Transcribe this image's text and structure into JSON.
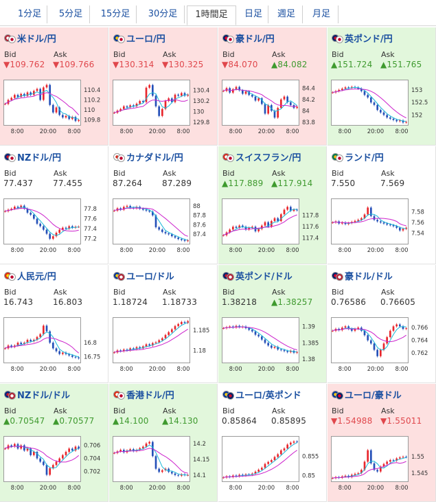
{
  "tabs": [
    {
      "id": "1m",
      "label": "1分足"
    },
    {
      "id": "5m",
      "label": "5分足"
    },
    {
      "id": "15m",
      "label": "15分足"
    },
    {
      "id": "30m",
      "label": "30分足"
    },
    {
      "id": "1h",
      "label": "1時間足"
    },
    {
      "id": "day",
      "label": "日足"
    },
    {
      "id": "week",
      "label": "週足"
    },
    {
      "id": "month",
      "label": "月足"
    }
  ],
  "active_tab": "1h",
  "bid_label": "Bid",
  "ask_label": "Ask",
  "colors": {
    "up": "#e8262c",
    "down": "#2550b8",
    "ma_fast": "#1ab8d8",
    "ma_slow": "#cc22cc",
    "bg_red": "#fde0e0",
    "bg_green": "#e2f7dc",
    "text_up": "#3f9a2f",
    "text_down": "#e0474c"
  },
  "pairs": [
    {
      "id": "usdjpy",
      "name": "米ドル/円",
      "flags": [
        "us",
        "jp"
      ],
      "bg": "red",
      "bid": {
        "text": "▼109.762",
        "dir": "down"
      },
      "ask": {
        "text": "▼109.766",
        "dir": "down"
      },
      "chart_data": {
        "type": "line",
        "y_ticks": [
          "110.4",
          "110.2",
          "110",
          "109.8"
        ],
        "ylim": [
          109.7,
          110.55
        ],
        "x_ticks": [
          "8:00",
          "20:00",
          "8:00"
        ],
        "series": [
          {
            "values": [
              110.12,
              110.2,
              110.24,
              110.3,
              110.26,
              110.32,
              110.28,
              110.35,
              110.3,
              110.38,
              110.42,
              110.2,
              110.45,
              110.5,
              110.1,
              109.95,
              110.05,
              109.9,
              109.85,
              109.88,
              109.82,
              109.86,
              109.78,
              109.8
            ]
          }
        ]
      }
    },
    {
      "id": "eurjpy",
      "name": "ユーロ/円",
      "flags": [
        "eu",
        "jp"
      ],
      "bg": "red",
      "bid": {
        "text": "▼130.314",
        "dir": "down"
      },
      "ask": {
        "text": "▼130.325",
        "dir": "down"
      },
      "chart_data": {
        "type": "line",
        "y_ticks": [
          "130.4",
          "130.2",
          "130",
          "129.8"
        ],
        "ylim": [
          129.75,
          130.55
        ],
        "x_ticks": [
          "8:00",
          "20:00",
          "8:00"
        ],
        "series": [
          {
            "values": [
              129.98,
              130.02,
              130.05,
              130.1,
              130.08,
              130.12,
              130.1,
              130.15,
              130.2,
              130.18,
              130.45,
              130.5,
              130.3,
              130.1,
              129.92,
              130.05,
              130.2,
              130.25,
              130.18,
              130.32,
              130.3,
              130.35,
              130.3,
              130.32
            ]
          }
        ]
      }
    },
    {
      "id": "audjpy",
      "name": "豪ドル/円",
      "flags": [
        "au",
        "jp"
      ],
      "bg": "red",
      "bid": {
        "text": "▼84.070",
        "dir": "down"
      },
      "ask": {
        "text": "▲84.082",
        "dir": "up"
      },
      "chart_data": {
        "type": "line",
        "y_ticks": [
          "84.4",
          "84.2",
          "84",
          "83.8"
        ],
        "ylim": [
          83.75,
          84.5
        ],
        "x_ticks": [
          "8:00",
          "20:00",
          "8:00"
        ],
        "series": [
          {
            "values": [
              84.35,
              84.4,
              84.32,
              84.38,
              84.42,
              84.36,
              84.3,
              84.34,
              84.28,
              84.25,
              84.18,
              84.22,
              84.12,
              83.95,
              84.1,
              84.0,
              83.88,
              84.05,
              84.2,
              84.25,
              84.15,
              84.1,
              84.05,
              84.07
            ]
          }
        ]
      }
    },
    {
      "id": "gbpjpy",
      "name": "英ポンド/円",
      "flags": [
        "gb",
        "jp"
      ],
      "bg": "green",
      "bid": {
        "text": "▲151.724",
        "dir": "up"
      },
      "ask": {
        "text": "▲151.765",
        "dir": "up"
      },
      "chart_data": {
        "type": "line",
        "y_ticks": [
          "153",
          "152.5",
          "152"
        ],
        "ylim": [
          151.6,
          153.3
        ],
        "x_ticks": [
          "8:00",
          "20:00",
          "8:00"
        ],
        "series": [
          {
            "values": [
              152.9,
              152.95,
              153.0,
              153.05,
              153.1,
              153.08,
              153.12,
              153.1,
              153.05,
              152.95,
              152.8,
              152.7,
              152.5,
              152.4,
              152.2,
              152.1,
              152.0,
              151.9,
              151.85,
              151.8,
              151.75,
              151.78,
              151.7,
              151.72
            ]
          }
        ]
      }
    },
    {
      "id": "nzdjpy",
      "name": "NZドル/円",
      "flags": [
        "nz",
        "jp"
      ],
      "bg": "white",
      "bid": {
        "text": "77.437",
        "dir": "flat"
      },
      "ask": {
        "text": "77.455",
        "dir": "flat"
      },
      "chart_data": {
        "type": "line",
        "y_ticks": [
          "77.8",
          "77.6",
          "77.4",
          "77.2"
        ],
        "ylim": [
          77.1,
          77.95
        ],
        "x_ticks": [
          "8:00",
          "20:00",
          "8:00"
        ],
        "series": [
          {
            "values": [
              77.75,
              77.78,
              77.8,
              77.84,
              77.82,
              77.86,
              77.8,
              77.72,
              77.68,
              77.6,
              77.5,
              77.45,
              77.38,
              77.3,
              77.2,
              77.25,
              77.32,
              77.38,
              77.42,
              77.4,
              77.45,
              77.42,
              77.44,
              77.44
            ]
          }
        ]
      }
    },
    {
      "id": "cadjpy",
      "name": "カナダドル/円",
      "flags": [
        "ca",
        "jp"
      ],
      "bg": "white",
      "bid": {
        "text": "87.264",
        "dir": "flat"
      },
      "ask": {
        "text": "87.289",
        "dir": "flat"
      },
      "chart_data": {
        "type": "line",
        "y_ticks": [
          "88",
          "87.8",
          "87.6",
          "87.4"
        ],
        "ylim": [
          87.2,
          88.1
        ],
        "x_ticks": [
          "8:00",
          "20:00",
          "8:00"
        ],
        "series": [
          {
            "values": [
              87.9,
              87.95,
              87.92,
              87.98,
              88.0,
              87.96,
              87.95,
              87.98,
              87.94,
              87.92,
              87.9,
              87.88,
              87.8,
              87.55,
              87.5,
              87.45,
              87.42,
              87.4,
              87.36,
              87.33,
              87.3,
              87.28,
              87.26,
              87.27
            ]
          }
        ]
      }
    },
    {
      "id": "chfjpy",
      "name": "スイスフラン/円",
      "flags": [
        "ch",
        "jp"
      ],
      "bg": "green",
      "bid": {
        "text": "▲117.889",
        "dir": "up"
      },
      "ask": {
        "text": "▲117.914",
        "dir": "up"
      },
      "chart_data": {
        "type": "line",
        "y_ticks": [
          "117.8",
          "117.6",
          "117.4"
        ],
        "ylim": [
          117.3,
          118.05
        ],
        "x_ticks": [
          "8:00",
          "20:00",
          "8:00"
        ],
        "series": [
          {
            "values": [
              117.45,
              117.5,
              117.55,
              117.6,
              117.58,
              117.62,
              117.6,
              117.55,
              117.58,
              117.6,
              117.52,
              117.56,
              117.62,
              117.68,
              117.6,
              117.7,
              117.75,
              117.7,
              117.82,
              117.9,
              117.95,
              117.88,
              117.9,
              117.89
            ]
          }
        ]
      }
    },
    {
      "id": "zarjpy",
      "name": "ランド/円",
      "flags": [
        "za",
        "jp"
      ],
      "bg": "white",
      "bid": {
        "text": "7.550",
        "dir": "flat"
      },
      "ask": {
        "text": "7.569",
        "dir": "flat"
      },
      "chart_data": {
        "type": "line",
        "y_ticks": [
          "7.58",
          "7.56",
          "7.54"
        ],
        "ylim": [
          7.52,
          7.6
        ],
        "x_ticks": [
          "8:00",
          "20:00",
          "8:00"
        ],
        "series": [
          {
            "values": [
              7.56,
              7.562,
              7.558,
              7.56,
              7.557,
              7.559,
              7.561,
              7.563,
              7.565,
              7.568,
              7.575,
              7.588,
              7.572,
              7.565,
              7.562,
              7.56,
              7.558,
              7.556,
              7.555,
              7.553,
              7.55,
              7.545,
              7.548,
              7.55
            ]
          }
        ]
      }
    },
    {
      "id": "cnyjpy",
      "name": "人民元/円",
      "flags": [
        "cn",
        "jp"
      ],
      "bg": "white",
      "bid": {
        "text": "16.743",
        "dir": "flat"
      },
      "ask": {
        "text": "16.803",
        "dir": "flat"
      },
      "chart_data": {
        "type": "line",
        "y_ticks": [
          "16.8",
          "16.75"
        ],
        "ylim": [
          16.73,
          16.88
        ],
        "x_ticks": [
          "8:00",
          "20:00",
          "8:00"
        ],
        "series": [
          {
            "values": [
              16.78,
              16.79,
              16.785,
              16.79,
              16.8,
              16.795,
              16.8,
              16.81,
              16.805,
              16.81,
              16.82,
              16.83,
              16.86,
              16.84,
              16.8,
              16.78,
              16.77,
              16.76,
              16.765,
              16.76,
              16.755,
              16.75,
              16.748,
              16.745
            ]
          }
        ]
      }
    },
    {
      "id": "eurusd",
      "name": "ユーロ/ドル",
      "flags": [
        "eu",
        "us"
      ],
      "bg": "white",
      "bid": {
        "text": "1.18724",
        "dir": "flat"
      },
      "ask": {
        "text": "1.18733",
        "dir": "flat"
      },
      "chart_data": {
        "type": "line",
        "y_ticks": [
          "1.185",
          "1.18"
        ],
        "ylim": [
          1.177,
          1.1875
        ],
        "x_ticks": [
          "8:00",
          "20:00",
          "8:00"
        ],
        "series": [
          {
            "values": [
              1.1795,
              1.18,
              1.1798,
              1.1802,
              1.18,
              1.1805,
              1.1803,
              1.1808,
              1.1805,
              1.181,
              1.1815,
              1.1812,
              1.1818,
              1.182,
              1.1825,
              1.183,
              1.1838,
              1.1845,
              1.1852,
              1.186,
              1.1865,
              1.187,
              1.1868,
              1.1872
            ]
          }
        ]
      }
    },
    {
      "id": "gbpusd",
      "name": "英ポンド/ドル",
      "flags": [
        "gb",
        "us"
      ],
      "bg": "green",
      "bid": {
        "text": "1.38218",
        "dir": "flat"
      },
      "ask": {
        "text": "▲1.38257",
        "dir": "up"
      },
      "chart_data": {
        "type": "line",
        "y_ticks": [
          "1.39",
          "1.385",
          "1.38"
        ],
        "ylim": [
          1.379,
          1.392
        ],
        "x_ticks": [
          "8:00",
          "20:00",
          "8:00"
        ],
        "series": [
          {
            "values": [
              1.3895,
              1.3898,
              1.39,
              1.3897,
              1.3902,
              1.3898,
              1.39,
              1.3895,
              1.389,
              1.3885,
              1.3875,
              1.387,
              1.386,
              1.385,
              1.3842,
              1.3835,
              1.3838,
              1.383,
              1.3828,
              1.3825,
              1.3822,
              1.3826,
              1.382,
              1.3822
            ]
          }
        ]
      }
    },
    {
      "id": "audusd",
      "name": "豪ドル/ドル",
      "flags": [
        "au",
        "us"
      ],
      "bg": "white",
      "bid": {
        "text": "0.76586",
        "dir": "flat"
      },
      "ask": {
        "text": "0.76605",
        "dir": "flat"
      },
      "chart_data": {
        "type": "line",
        "y_ticks": [
          "0.766",
          "0.764",
          "0.762"
        ],
        "ylim": [
          0.7605,
          0.7672
        ],
        "x_ticks": [
          "8:00",
          "20:00",
          "8:00"
        ],
        "series": [
          {
            "values": [
              0.7655,
              0.7658,
              0.7656,
              0.766,
              0.7662,
              0.7658,
              0.7655,
              0.7658,
              0.766,
              0.7655,
              0.7648,
              0.764,
              0.7635,
              0.7625,
              0.7615,
              0.7625,
              0.7635,
              0.7645,
              0.7655,
              0.7662,
              0.7665,
              0.7662,
              0.7658,
              0.7659
            ]
          }
        ]
      }
    },
    {
      "id": "nzdusd",
      "name": "NZドル/ドル",
      "flags": [
        "nz",
        "us"
      ],
      "bg": "green",
      "bid": {
        "text": "▲0.70547",
        "dir": "up"
      },
      "ask": {
        "text": "▲0.70577",
        "dir": "up"
      },
      "chart_data": {
        "type": "line",
        "y_ticks": [
          "0.706",
          "0.704",
          "0.702"
        ],
        "ylim": [
          0.7005,
          0.707
        ],
        "x_ticks": [
          "8:00",
          "20:00",
          "8:00"
        ],
        "series": [
          {
            "values": [
              0.7055,
              0.706,
              0.7058,
              0.7062,
              0.7055,
              0.706,
              0.7052,
              0.7055,
              0.7045,
              0.705,
              0.704,
              0.7035,
              0.703,
              0.7015,
              0.7025,
              0.703,
              0.7035,
              0.704,
              0.7045,
              0.705,
              0.7055,
              0.7052,
              0.7058,
              0.7055
            ]
          }
        ]
      }
    },
    {
      "id": "hkdjpy",
      "name": "香港ドル/円",
      "flags": [
        "hk",
        "jp"
      ],
      "bg": "green",
      "bid": {
        "text": "▲14.100",
        "dir": "up"
      },
      "ask": {
        "text": "▲14.130",
        "dir": "up"
      },
      "chart_data": {
        "type": "line",
        "y_ticks": [
          "14.2",
          "14.15",
          "14.1"
        ],
        "ylim": [
          14.08,
          14.215
        ],
        "x_ticks": [
          "8:00",
          "20:00",
          "8:00"
        ],
        "series": [
          {
            "values": [
              14.17,
              14.175,
              14.18,
              14.172,
              14.178,
              14.182,
              14.176,
              14.18,
              14.185,
              14.19,
              14.2,
              14.205,
              14.16,
              14.12,
              14.11,
              14.115,
              14.12,
              14.11,
              14.105,
              14.1,
              14.098,
              14.102,
              14.1,
              14.1
            ]
          }
        ]
      }
    },
    {
      "id": "eurgbp",
      "name": "ユーロ/英ポンド",
      "flags": [
        "eu",
        "gb"
      ],
      "bg": "white",
      "bid": {
        "text": "0.85864",
        "dir": "flat"
      },
      "ask": {
        "text": "0.85895",
        "dir": "flat"
      },
      "chart_data": {
        "type": "line",
        "y_ticks": [
          "0.855",
          "0.85"
        ],
        "ylim": [
          0.8485,
          0.8595
        ],
        "x_ticks": [
          "8:00",
          "20:00",
          "8:00"
        ],
        "series": [
          {
            "values": [
              0.8495,
              0.8498,
              0.8496,
              0.85,
              0.8498,
              0.8502,
              0.85,
              0.8503,
              0.8502,
              0.8505,
              0.851,
              0.8515,
              0.852,
              0.853,
              0.8535,
              0.854,
              0.8548,
              0.8555,
              0.8565,
              0.857,
              0.858,
              0.8585,
              0.8588,
              0.8587
            ]
          }
        ]
      }
    },
    {
      "id": "euraud",
      "name": "ユーロ/豪ドル",
      "flags": [
        "eu",
        "au"
      ],
      "bg": "red",
      "bid": {
        "text": "▼1.54988",
        "dir": "down"
      },
      "ask": {
        "text": "▼1.55011",
        "dir": "down"
      },
      "chart_data": {
        "type": "line",
        "y_ticks": [
          "1.55",
          "1.545"
        ],
        "ylim": [
          1.5425,
          1.5555
        ],
        "x_ticks": [
          "8:00",
          "20:00",
          "8:00"
        ],
        "series": [
          {
            "values": [
              1.5435,
              1.5438,
              1.5436,
              1.544,
              1.5442,
              1.5438,
              1.5445,
              1.5448,
              1.545,
              1.546,
              1.5485,
              1.552,
              1.548,
              1.546,
              1.5455,
              1.547,
              1.5478,
              1.5485,
              1.549,
              1.5488,
              1.5495,
              1.5498,
              1.55,
              1.5499
            ]
          }
        ]
      }
    }
  ]
}
